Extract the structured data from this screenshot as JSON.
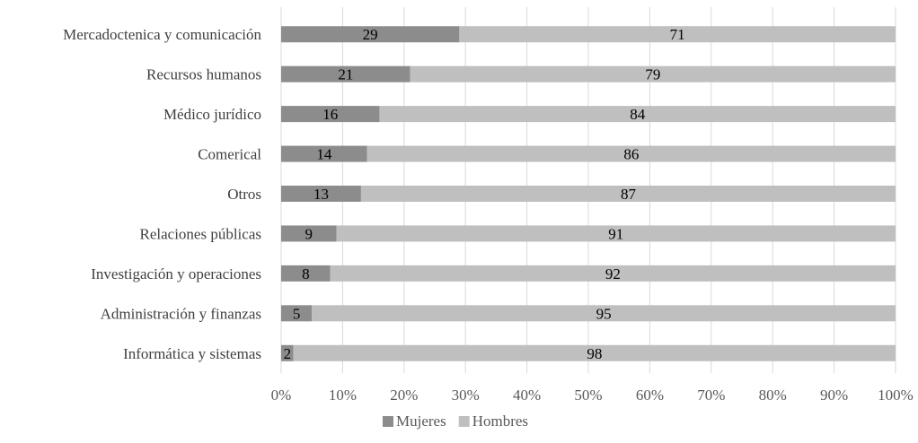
{
  "chart_data": {
    "type": "bar",
    "orientation": "horizontal",
    "stacked": "percent",
    "categories": [
      "Mercadoctenica y comunicación",
      "Recursos humanos",
      "Médico jurídico",
      "Comerical",
      "Otros",
      "Relaciones públicas",
      "Investigación y operaciones",
      "Administración y finanzas",
      "Informática y sistemas"
    ],
    "series": [
      {
        "name": "Mujeres",
        "color": "#8c8c8c",
        "values": [
          29,
          21,
          16,
          14,
          13,
          9,
          8,
          5,
          2
        ]
      },
      {
        "name": "Hombres",
        "color": "#bfbfbf",
        "values": [
          71,
          79,
          84,
          86,
          87,
          91,
          92,
          95,
          98
        ]
      }
    ],
    "xlim": [
      0,
      100
    ],
    "xticks": [
      "0%",
      "10%",
      "20%",
      "30%",
      "40%",
      "50%",
      "60%",
      "70%",
      "80%",
      "90%",
      "100%"
    ],
    "grid": true,
    "legend": "bottom",
    "title": "",
    "xlabel": "",
    "ylabel": ""
  }
}
